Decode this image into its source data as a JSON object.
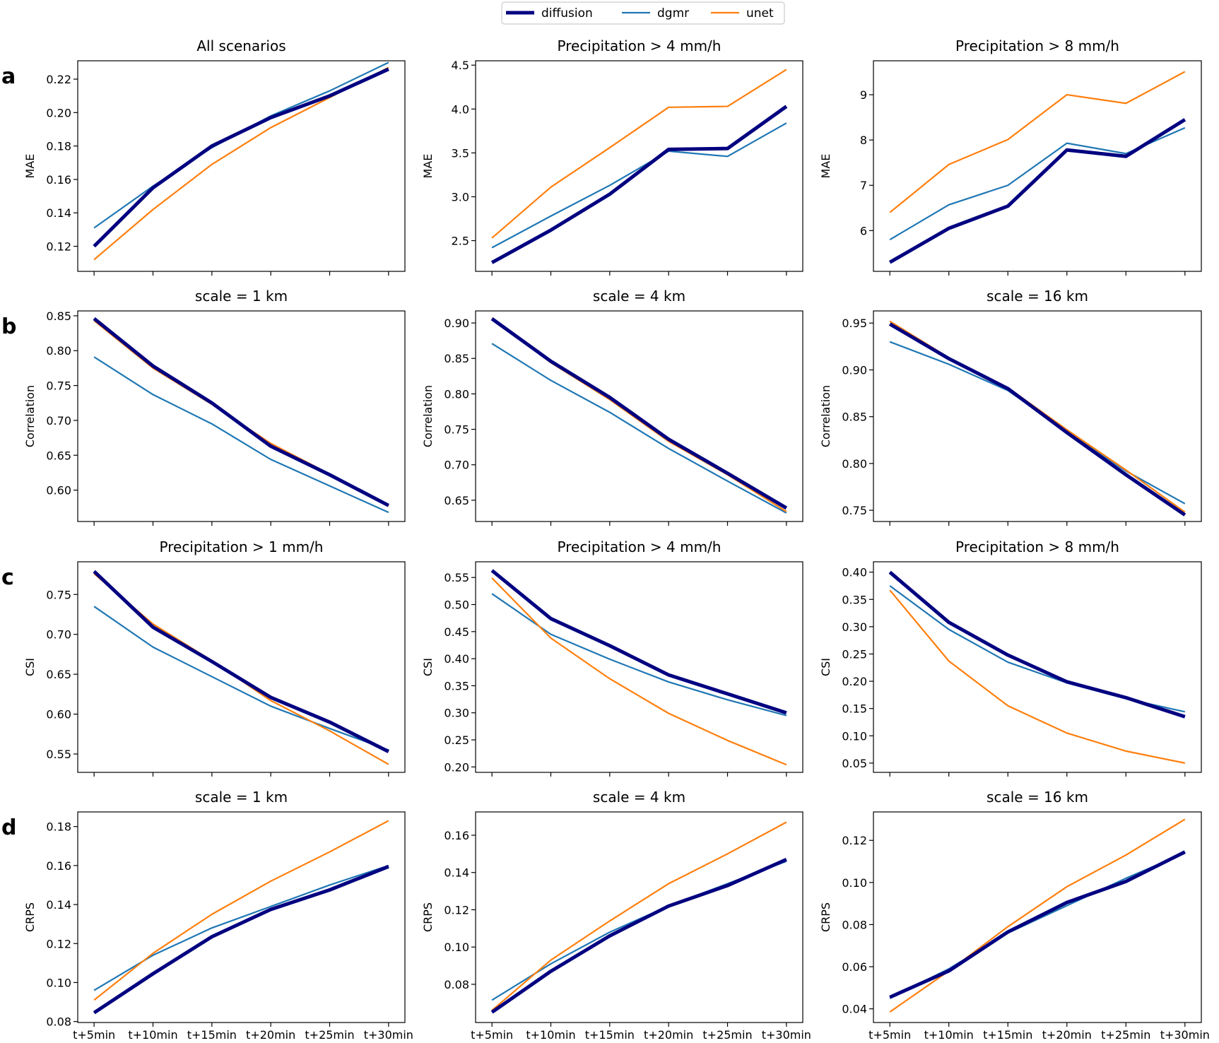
{
  "legend": {
    "position": "top-center",
    "items": [
      {
        "label": "diffusion",
        "color": "#000080",
        "width": 5
      },
      {
        "label": "dgmr",
        "color": "#1f77b4",
        "width": 2.2
      },
      {
        "label": "unet",
        "color": "#ff7f0e",
        "width": 2.2
      }
    ]
  },
  "x_tick_labels": [
    "t+5min",
    "t+10min",
    "t+15min",
    "t+20min",
    "t+25min",
    "t+30min"
  ],
  "row_letters": [
    "a",
    "b",
    "c",
    "d"
  ],
  "chart_data": [
    {
      "type": "line",
      "row": 0,
      "col": 0,
      "title": "All scenarios",
      "ylabel": "MAE",
      "ylim": [
        0.105,
        0.231
      ],
      "yticks": [
        0.12,
        0.14,
        0.16,
        0.18,
        0.2,
        0.22
      ],
      "ytick_decimals": 2,
      "grid": false,
      "categories": [
        "t+5min",
        "t+10min",
        "t+15min",
        "t+20min",
        "t+25min",
        "t+30min"
      ],
      "series": [
        {
          "name": "diffusion",
          "values": [
            0.12,
            0.155,
            0.18,
            0.197,
            0.21,
            0.226
          ]
        },
        {
          "name": "dgmr",
          "values": [
            0.131,
            0.156,
            0.179,
            0.198,
            0.213,
            0.23
          ]
        },
        {
          "name": "unet",
          "values": [
            0.112,
            0.142,
            0.169,
            0.191,
            0.209,
            0.227
          ]
        }
      ]
    },
    {
      "type": "line",
      "row": 0,
      "col": 1,
      "title": "Precipitation > 4 mm/h",
      "ylabel": "MAE",
      "ylim": [
        2.15,
        4.55
      ],
      "yticks": [
        2.5,
        3.0,
        3.5,
        4.0,
        4.5
      ],
      "ytick_decimals": 1,
      "grid": false,
      "categories": [
        "t+5min",
        "t+10min",
        "t+15min",
        "t+20min",
        "t+25min",
        "t+30min"
      ],
      "series": [
        {
          "name": "diffusion",
          "values": [
            2.25,
            2.62,
            3.03,
            3.54,
            3.55,
            4.03
          ]
        },
        {
          "name": "dgmr",
          "values": [
            2.42,
            2.78,
            3.13,
            3.52,
            3.46,
            3.84
          ]
        },
        {
          "name": "unet",
          "values": [
            2.53,
            3.11,
            3.56,
            4.02,
            4.03,
            4.45
          ]
        }
      ]
    },
    {
      "type": "line",
      "row": 0,
      "col": 2,
      "title": "Precipitation > 8 mm/h",
      "ylabel": "MAE",
      "ylim": [
        5.1,
        9.75
      ],
      "yticks": [
        6,
        7,
        8,
        9
      ],
      "ytick_decimals": 0,
      "grid": false,
      "categories": [
        "t+5min",
        "t+10min",
        "t+15min",
        "t+20min",
        "t+25min",
        "t+30min"
      ],
      "series": [
        {
          "name": "diffusion",
          "values": [
            5.3,
            6.05,
            6.54,
            7.78,
            7.64,
            8.45
          ]
        },
        {
          "name": "dgmr",
          "values": [
            5.8,
            6.57,
            7.0,
            7.93,
            7.7,
            8.27
          ]
        },
        {
          "name": "unet",
          "values": [
            6.4,
            7.46,
            8.01,
            9.0,
            8.81,
            9.51
          ]
        }
      ]
    },
    {
      "type": "line",
      "row": 1,
      "col": 0,
      "title": "scale = 1 km",
      "ylabel": "Correlation",
      "ylim": [
        0.555,
        0.857
      ],
      "yticks": [
        0.6,
        0.65,
        0.7,
        0.75,
        0.8,
        0.85
      ],
      "ytick_decimals": 2,
      "grid": false,
      "categories": [
        "t+5min",
        "t+10min",
        "t+15min",
        "t+20min",
        "t+25min",
        "t+30min"
      ],
      "series": [
        {
          "name": "diffusion",
          "values": [
            0.846,
            0.778,
            0.725,
            0.663,
            0.622,
            0.578
          ]
        },
        {
          "name": "dgmr",
          "values": [
            0.791,
            0.737,
            0.695,
            0.644,
            0.606,
            0.568
          ]
        },
        {
          "name": "unet",
          "values": [
            0.843,
            0.775,
            0.723,
            0.667,
            0.623,
            0.577
          ]
        }
      ]
    },
    {
      "type": "line",
      "row": 1,
      "col": 1,
      "title": "scale = 4 km",
      "ylabel": "Correlation",
      "ylim": [
        0.62,
        0.917
      ],
      "yticks": [
        0.65,
        0.7,
        0.75,
        0.8,
        0.85,
        0.9
      ],
      "ytick_decimals": 2,
      "grid": false,
      "categories": [
        "t+5min",
        "t+10min",
        "t+15min",
        "t+20min",
        "t+25min",
        "t+30min"
      ],
      "series": [
        {
          "name": "diffusion",
          "values": [
            0.906,
            0.846,
            0.795,
            0.736,
            0.688,
            0.639
          ]
        },
        {
          "name": "dgmr",
          "values": [
            0.871,
            0.819,
            0.774,
            0.723,
            0.677,
            0.632
          ]
        },
        {
          "name": "unet",
          "values": [
            0.907,
            0.844,
            0.792,
            0.733,
            0.686,
            0.634
          ]
        }
      ]
    },
    {
      "type": "line",
      "row": 1,
      "col": 2,
      "title": "scale = 16 km",
      "ylabel": "Correlation",
      "ylim": [
        0.738,
        0.963
      ],
      "yticks": [
        0.75,
        0.8,
        0.85,
        0.9,
        0.95
      ],
      "ytick_decimals": 2,
      "grid": false,
      "categories": [
        "t+5min",
        "t+10min",
        "t+15min",
        "t+20min",
        "t+25min",
        "t+30min"
      ],
      "series": [
        {
          "name": "diffusion",
          "values": [
            0.949,
            0.912,
            0.88,
            0.833,
            0.788,
            0.745
          ]
        },
        {
          "name": "dgmr",
          "values": [
            0.93,
            0.906,
            0.878,
            0.834,
            0.792,
            0.757
          ]
        },
        {
          "name": "unet",
          "values": [
            0.952,
            0.913,
            0.881,
            0.836,
            0.793,
            0.748
          ]
        }
      ]
    },
    {
      "type": "line",
      "row": 2,
      "col": 0,
      "title": "Precipitation > 1 mm/h",
      "ylabel": "CSI",
      "ylim": [
        0.527,
        0.791
      ],
      "yticks": [
        0.55,
        0.6,
        0.65,
        0.7,
        0.75
      ],
      "ytick_decimals": 2,
      "grid": false,
      "categories": [
        "t+5min",
        "t+10min",
        "t+15min",
        "t+20min",
        "t+25min",
        "t+30min"
      ],
      "series": [
        {
          "name": "diffusion",
          "values": [
            0.779,
            0.709,
            0.666,
            0.621,
            0.59,
            0.553
          ]
        },
        {
          "name": "dgmr",
          "values": [
            0.735,
            0.684,
            0.647,
            0.61,
            0.582,
            0.555
          ]
        },
        {
          "name": "unet",
          "values": [
            0.776,
            0.713,
            0.667,
            0.617,
            0.579,
            0.537
          ]
        }
      ]
    },
    {
      "type": "line",
      "row": 2,
      "col": 1,
      "title": "Precipitation > 4 mm/h",
      "ylabel": "CSI",
      "ylim": [
        0.19,
        0.579
      ],
      "yticks": [
        0.2,
        0.25,
        0.3,
        0.35,
        0.4,
        0.45,
        0.5,
        0.55
      ],
      "ytick_decimals": 2,
      "grid": false,
      "categories": [
        "t+5min",
        "t+10min",
        "t+15min",
        "t+20min",
        "t+25min",
        "t+30min"
      ],
      "series": [
        {
          "name": "diffusion",
          "values": [
            0.563,
            0.474,
            0.424,
            0.37,
            0.335,
            0.3
          ]
        },
        {
          "name": "dgmr",
          "values": [
            0.52,
            0.445,
            0.399,
            0.357,
            0.324,
            0.295
          ]
        },
        {
          "name": "unet",
          "values": [
            0.549,
            0.438,
            0.363,
            0.299,
            0.249,
            0.204
          ]
        }
      ]
    },
    {
      "type": "line",
      "row": 2,
      "col": 2,
      "title": "Precipitation > 8 mm/h",
      "ylabel": "CSI",
      "ylim": [
        0.033,
        0.419
      ],
      "yticks": [
        0.05,
        0.1,
        0.15,
        0.2,
        0.25,
        0.3,
        0.35,
        0.4
      ],
      "ytick_decimals": 2,
      "grid": false,
      "categories": [
        "t+5min",
        "t+10min",
        "t+15min",
        "t+20min",
        "t+25min",
        "t+30min"
      ],
      "series": [
        {
          "name": "diffusion",
          "values": [
            0.4,
            0.308,
            0.248,
            0.199,
            0.17,
            0.135
          ]
        },
        {
          "name": "dgmr",
          "values": [
            0.375,
            0.295,
            0.235,
            0.197,
            0.168,
            0.144
          ]
        },
        {
          "name": "unet",
          "values": [
            0.367,
            0.237,
            0.155,
            0.105,
            0.072,
            0.05
          ]
        }
      ]
    },
    {
      "type": "line",
      "row": 3,
      "col": 0,
      "title": "scale = 1 km",
      "ylabel": "CRPS",
      "ylim": [
        0.0795,
        0.1875
      ],
      "yticks": [
        0.08,
        0.1,
        0.12,
        0.14,
        0.16,
        0.18
      ],
      "ytick_decimals": 2,
      "grid": false,
      "categories": [
        "t+5min",
        "t+10min",
        "t+15min",
        "t+20min",
        "t+25min",
        "t+30min"
      ],
      "series": [
        {
          "name": "diffusion",
          "values": [
            0.0845,
            0.1045,
            0.1235,
            0.1375,
            0.1475,
            0.1595
          ]
        },
        {
          "name": "dgmr",
          "values": [
            0.096,
            0.114,
            0.128,
            0.139,
            0.15,
            0.16
          ]
        },
        {
          "name": "unet",
          "values": [
            0.091,
            0.115,
            0.135,
            0.152,
            0.167,
            0.183
          ]
        }
      ]
    },
    {
      "type": "line",
      "row": 3,
      "col": 1,
      "title": "scale = 4 km",
      "ylabel": "CRPS",
      "ylim": [
        0.0595,
        0.1725
      ],
      "yticks": [
        0.08,
        0.1,
        0.12,
        0.14,
        0.16
      ],
      "ytick_decimals": 2,
      "grid": false,
      "categories": [
        "t+5min",
        "t+10min",
        "t+15min",
        "t+20min",
        "t+25min",
        "t+30min"
      ],
      "series": [
        {
          "name": "diffusion",
          "values": [
            0.065,
            0.087,
            0.106,
            0.122,
            0.133,
            0.147
          ]
        },
        {
          "name": "dgmr",
          "values": [
            0.0715,
            0.091,
            0.108,
            0.122,
            0.134,
            0.146
          ]
        },
        {
          "name": "unet",
          "values": [
            0.066,
            0.093,
            0.114,
            0.134,
            0.15,
            0.167
          ]
        }
      ]
    },
    {
      "type": "line",
      "row": 3,
      "col": 2,
      "title": "scale = 16 km",
      "ylabel": "CRPS",
      "ylim": [
        0.0335,
        0.1335
      ],
      "yticks": [
        0.04,
        0.06,
        0.08,
        0.1,
        0.12
      ],
      "ytick_decimals": 2,
      "grid": false,
      "categories": [
        "t+5min",
        "t+10min",
        "t+15min",
        "t+20min",
        "t+25min",
        "t+30min"
      ],
      "series": [
        {
          "name": "diffusion",
          "values": [
            0.0455,
            0.058,
            0.0765,
            0.0905,
            0.1005,
            0.1145
          ]
        },
        {
          "name": "dgmr",
          "values": [
            0.045,
            0.059,
            0.076,
            0.089,
            0.102,
            0.114
          ]
        },
        {
          "name": "unet",
          "values": [
            0.0385,
            0.058,
            0.079,
            0.098,
            0.113,
            0.13
          ]
        }
      ]
    }
  ]
}
